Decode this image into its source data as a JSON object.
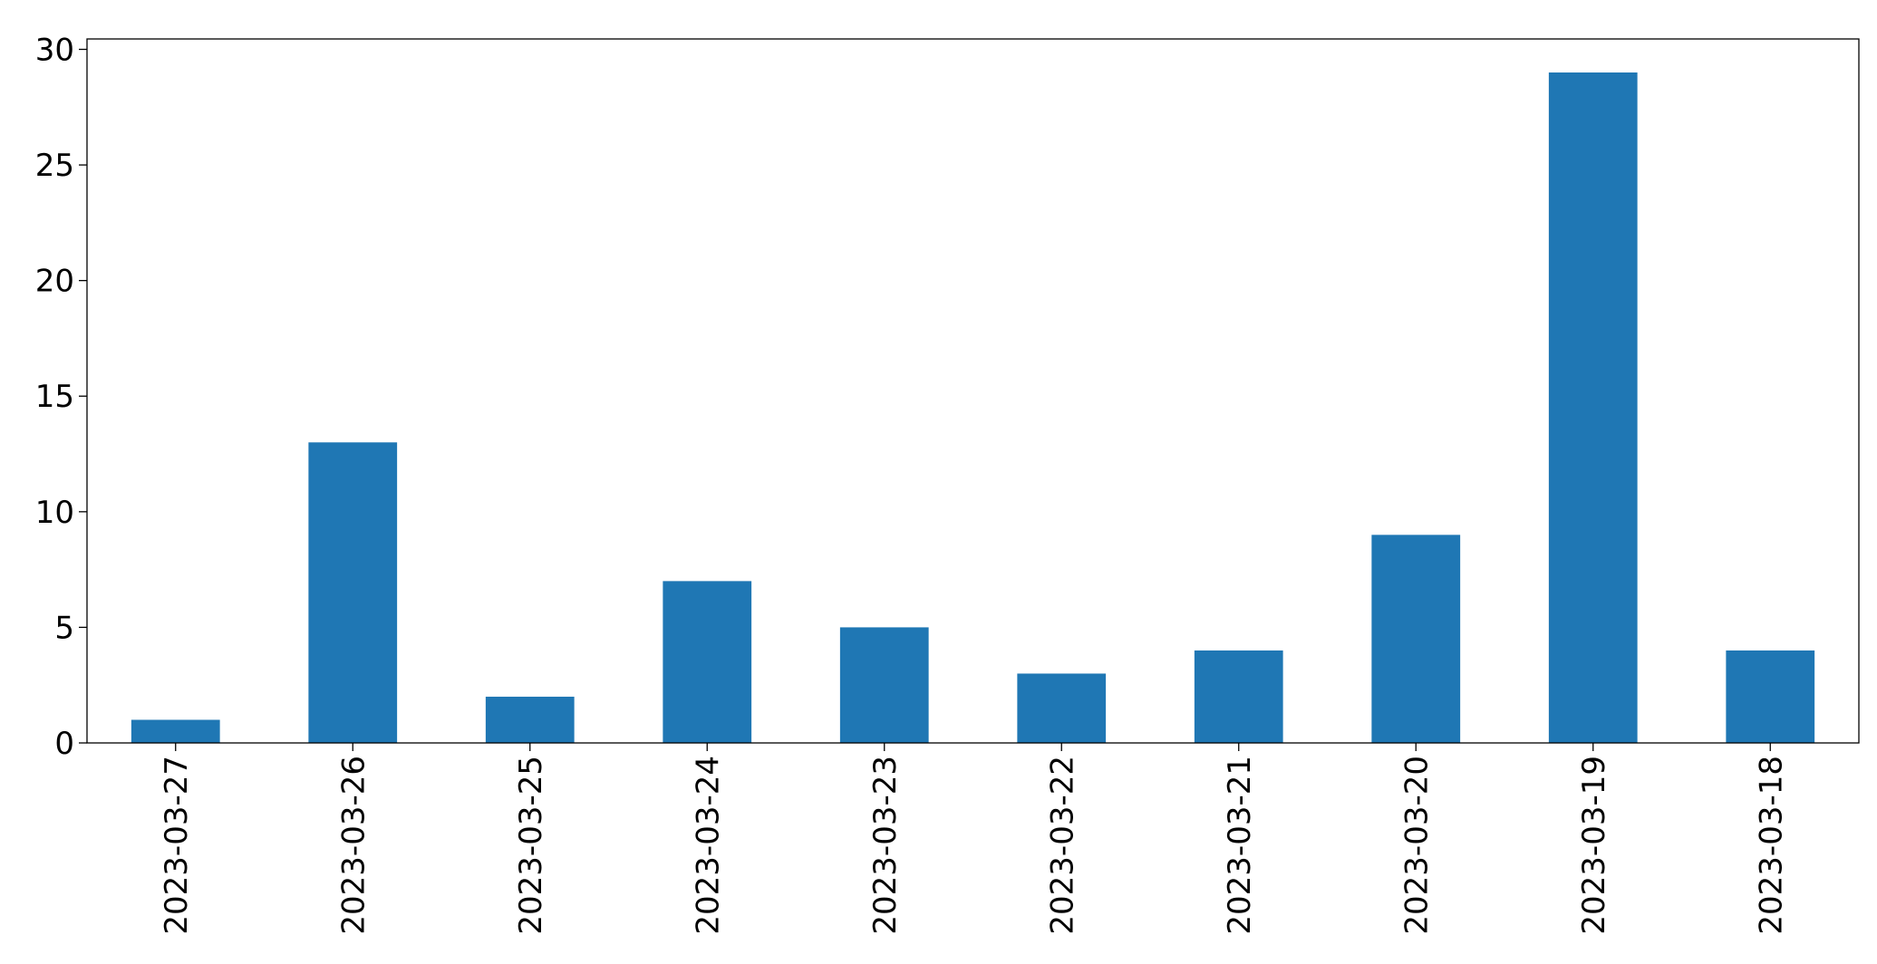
{
  "chart_data": {
    "type": "bar",
    "categories": [
      "2023-03-27",
      "2023-03-26",
      "2023-03-25",
      "2023-03-24",
      "2023-03-23",
      "2023-03-22",
      "2023-03-21",
      "2023-03-20",
      "2023-03-19",
      "2023-03-18"
    ],
    "values": [
      1,
      13,
      2,
      7,
      5,
      3,
      4,
      9,
      29,
      4
    ],
    "color": "#1f77b4",
    "ylim": [
      0,
      30.45
    ],
    "yticks": [
      0,
      5,
      10,
      15,
      20,
      25,
      30
    ],
    "grid": false
  }
}
